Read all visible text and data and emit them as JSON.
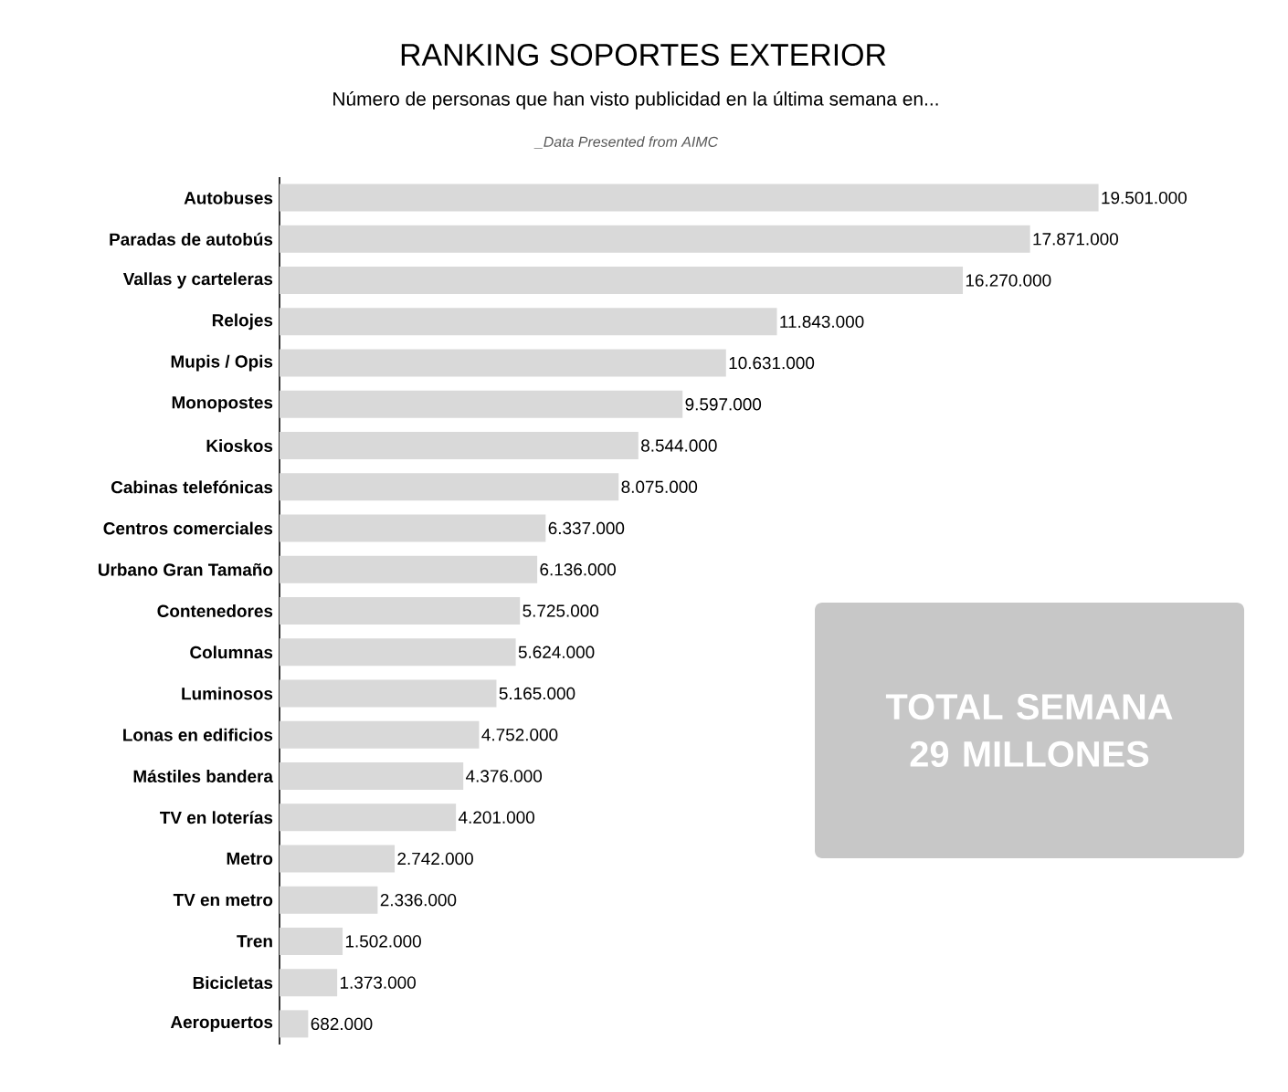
{
  "chart_data": {
    "type": "bar",
    "orientation": "horizontal",
    "title": "RANKING SOPORTES EXTERIOR",
    "subtitle": "Número de personas que han visto publicidad en la última semana en...",
    "annotations": [
      "_Data Presented from AIMC",
      "TOTAL SEMANA 29 MILLONES"
    ],
    "categories": [
      "Autobuses",
      "Paradas de autobús",
      "Vallas y carteleras",
      "Relojes",
      "Mupis / Opis",
      "Monopostes",
      "Kioskos",
      "Cabinas telefónicas",
      "Centros comerciales",
      "Urbano Gran Tamaño",
      "Contenedores",
      "Columnas",
      "Luminosos",
      "Lonas en edificios",
      "Mástiles bandera",
      "TV en loterías",
      "Metro",
      "TV en metro",
      "Tren",
      "Bicicletas",
      "Aeropuertos"
    ],
    "values": [
      19501000,
      17871000,
      16270000,
      11843000,
      10631000,
      9597000,
      8544000,
      8075000,
      6337000,
      6136000,
      5725000,
      5624000,
      5165000,
      4752000,
      4376000,
      4201000,
      2742000,
      2336000,
      1502000,
      1373000,
      682000
    ],
    "value_labels": [
      "19.501.000",
      "17.871.000",
      "16.270.000",
      "11.843.000",
      "10.631.000",
      "9.597.000",
      "8.544.000",
      "8.075.000",
      "6.337.000",
      "6.136.000",
      "5.725.000",
      "5.624.000",
      "5.165.000",
      "4.752.000",
      "4.376.000",
      "4.201.000",
      "2.742.000",
      "2.336.000",
      "1.502.000",
      "1.373.000",
      "682.000"
    ],
    "color": "#d9d9d9"
  }
}
